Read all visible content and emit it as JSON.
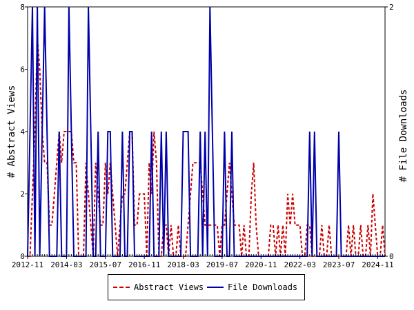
{
  "chart_data": {
    "type": "line",
    "x_ticks": [
      "2012-11",
      "2014-03",
      "2015-07",
      "2016-11",
      "2018-03",
      "2019-07",
      "2020-11",
      "2022-03",
      "2023-07",
      "2024-11"
    ],
    "xlabel": "",
    "ylabel": "# Abstract Views",
    "y2label": "# File Downloads",
    "ylim": [
      0,
      8
    ],
    "y2lim": [
      0,
      2
    ],
    "y_ticks": [
      "0",
      "2",
      "4",
      "6",
      "8"
    ],
    "y2_ticks": [
      "0",
      "2"
    ],
    "legend": "bottom-center",
    "months": 148,
    "series": [
      {
        "name": "Abstract Views",
        "axis": "left",
        "color": "#cc0000",
        "style": "dashed",
        "values": [
          0,
          0,
          2,
          4,
          7,
          6,
          4,
          3,
          3,
          1,
          1,
          2,
          3,
          4,
          3,
          4,
          4,
          4,
          4,
          3,
          3,
          0,
          0,
          0,
          3,
          2,
          1,
          0,
          3,
          2,
          1,
          1,
          3,
          2,
          3,
          2,
          1,
          0,
          1,
          2,
          2,
          3,
          4,
          4,
          1,
          1,
          2,
          2,
          2,
          0,
          3,
          2,
          4,
          3,
          0,
          0,
          1,
          1,
          0,
          1,
          0,
          0,
          1,
          0,
          0,
          0,
          1,
          2,
          3,
          3,
          3,
          3,
          2,
          1,
          1,
          1,
          1,
          1,
          1,
          0,
          1,
          1,
          2,
          3,
          2,
          1,
          1,
          1,
          0,
          1,
          0,
          0,
          2,
          3,
          1,
          0,
          0,
          0,
          0,
          0,
          1,
          1,
          0,
          1,
          0,
          1,
          0,
          2,
          1,
          2,
          1,
          1,
          1,
          0,
          0,
          1,
          1,
          0,
          0,
          0,
          0,
          1,
          0,
          0,
          1,
          0,
          0,
          0,
          0,
          0,
          0,
          0,
          1,
          0,
          1,
          0,
          0,
          1,
          0,
          0,
          1,
          0,
          2,
          1,
          0,
          0,
          1,
          0
        ]
      },
      {
        "name": "File Downloads",
        "axis": "right",
        "color": "#0000aa",
        "style": "solid",
        "values": [
          0,
          1,
          2,
          0,
          2,
          0,
          1,
          2,
          1,
          0,
          0,
          0,
          0,
          1,
          0,
          0,
          0,
          2,
          1,
          0,
          0,
          0,
          0,
          0,
          0,
          2,
          1,
          0,
          0,
          1,
          0,
          0,
          0,
          1,
          1,
          0,
          0,
          0,
          0,
          1,
          0,
          0,
          1,
          1,
          0,
          0,
          0,
          0,
          0,
          0,
          0,
          1,
          0,
          0,
          0,
          1,
          0,
          1,
          0,
          0,
          0,
          0,
          0,
          0,
          1,
          1,
          1,
          0,
          0,
          0,
          0,
          1,
          0,
          1,
          0,
          2,
          1,
          0,
          0,
          0,
          0,
          1,
          0,
          0,
          1,
          0,
          0,
          0,
          0,
          0,
          0,
          0,
          0,
          0,
          0,
          0,
          0,
          0,
          0,
          0,
          0,
          0,
          0,
          0,
          0,
          0,
          0,
          0,
          0,
          0,
          0,
          0,
          0,
          0,
          0,
          0,
          1,
          0,
          1,
          0,
          0,
          0,
          0,
          0,
          0,
          0,
          0,
          0,
          1,
          0,
          0,
          0,
          0,
          0,
          0,
          0,
          0,
          0,
          0,
          0,
          0,
          0,
          0,
          0,
          0,
          0,
          0,
          0
        ]
      }
    ]
  }
}
